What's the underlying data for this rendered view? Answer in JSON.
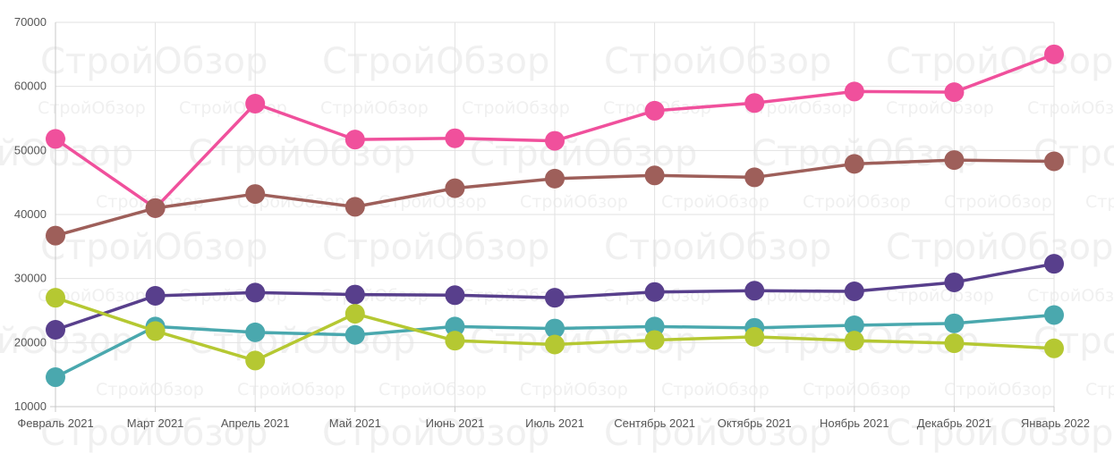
{
  "chart_data": {
    "type": "line",
    "categories": [
      "Февраль 2021",
      "Март 2021",
      "Апрель 2021",
      "Май 2021",
      "Июнь 2021",
      "Июль 2021",
      "Сентябрь 2021",
      "Октябрь 2021",
      "Ноябрь 2021",
      "Декабрь 2021",
      "Январь 2022"
    ],
    "ylim": [
      10000,
      70000
    ],
    "yticks": [
      10000,
      20000,
      30000,
      40000,
      50000,
      60000,
      70000
    ],
    "ytick_labels": [
      "10000",
      "20000",
      "30000",
      "40000",
      "50000",
      "60000",
      "70000"
    ],
    "grid": true,
    "watermark": "СтройОбзор",
    "series": [
      {
        "name": "pink",
        "color": "#f0509c",
        "values": [
          51800,
          41000,
          57300,
          51700,
          51900,
          51500,
          56200,
          57400,
          59200,
          59100,
          65000
        ]
      },
      {
        "name": "brown",
        "color": "#9e5f5a",
        "values": [
          36700,
          41000,
          43200,
          41200,
          44100,
          45600,
          46100,
          45800,
          47900,
          48500,
          48300
        ]
      },
      {
        "name": "purple",
        "color": "#583f8c",
        "values": [
          22000,
          27300,
          27800,
          27500,
          27400,
          27000,
          27900,
          28100,
          28000,
          29400,
          32300
        ]
      },
      {
        "name": "teal",
        "color": "#4aa8ae",
        "values": [
          14600,
          22500,
          21600,
          21200,
          22500,
          22200,
          22500,
          22300,
          22700,
          23000,
          24300
        ]
      },
      {
        "name": "lime",
        "color": "#b5c832",
        "values": [
          27000,
          21800,
          17200,
          24500,
          20300,
          19700,
          20400,
          20900,
          20300,
          19900,
          19100
        ]
      }
    ]
  }
}
